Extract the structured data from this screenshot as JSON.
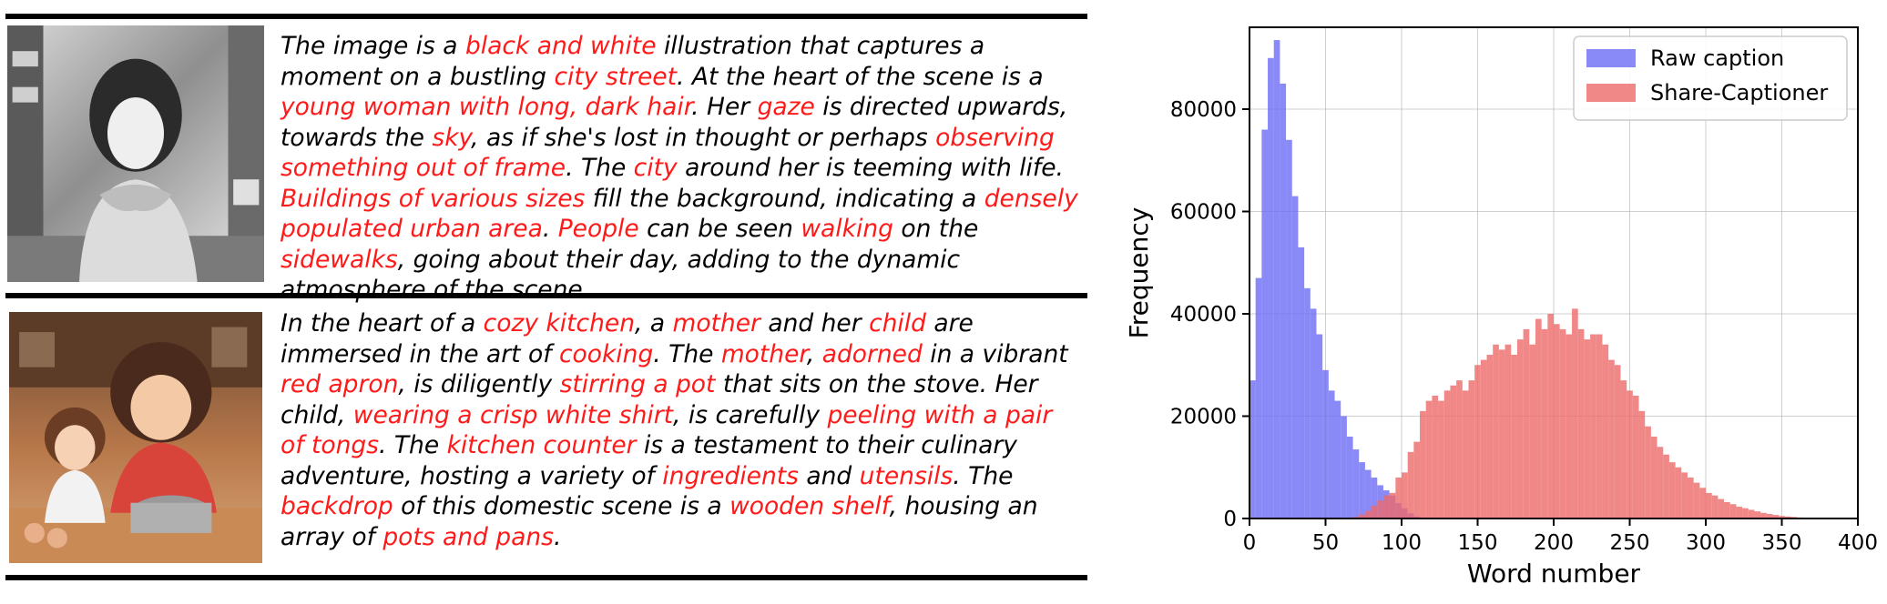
{
  "captions": [
    {
      "segments": [
        {
          "t": "The image is a ",
          "h": false
        },
        {
          "t": "black and white",
          "h": true
        },
        {
          "t": " illustration that captures a moment on a bustling ",
          "h": false
        },
        {
          "t": "city street",
          "h": true
        },
        {
          "t": ". At the heart of the scene is a ",
          "h": false
        },
        {
          "t": "young woman with long, dark hair",
          "h": true
        },
        {
          "t": ". Her ",
          "h": false
        },
        {
          "t": "gaze",
          "h": true
        },
        {
          "t": " is directed upwards, towards the ",
          "h": false
        },
        {
          "t": "sky",
          "h": true
        },
        {
          "t": ", as if she's lost in thought or perhaps ",
          "h": false
        },
        {
          "t": "observing something out of frame",
          "h": true
        },
        {
          "t": ". The ",
          "h": false
        },
        {
          "t": "city",
          "h": true
        },
        {
          "t": " around her is teeming with life. ",
          "h": false
        },
        {
          "t": "Buildings of various sizes",
          "h": true
        },
        {
          "t": " fill the background, indicating a ",
          "h": false
        },
        {
          "t": "densely populated urban area",
          "h": true
        },
        {
          "t": ". ",
          "h": false
        },
        {
          "t": "People",
          "h": true
        },
        {
          "t": " can be seen ",
          "h": false
        },
        {
          "t": "walking",
          "h": true
        },
        {
          "t": " on the ",
          "h": false
        },
        {
          "t": "sidewalks",
          "h": true
        },
        {
          "t": ", going about their day, adding to the dynamic atmosphere of the scene.",
          "h": false
        }
      ]
    },
    {
      "segments": [
        {
          "t": "In the heart of a ",
          "h": false
        },
        {
          "t": "cozy kitchen",
          "h": true
        },
        {
          "t": ", a ",
          "h": false
        },
        {
          "t": "mother",
          "h": true
        },
        {
          "t": " and her ",
          "h": false
        },
        {
          "t": "child",
          "h": true
        },
        {
          "t": " are immersed in the art of ",
          "h": false
        },
        {
          "t": "cooking",
          "h": true
        },
        {
          "t": ". The ",
          "h": false
        },
        {
          "t": "mother",
          "h": true
        },
        {
          "t": ", ",
          "h": false
        },
        {
          "t": "adorned",
          "h": true
        },
        {
          "t": " in a vibrant ",
          "h": false
        },
        {
          "t": "red apron",
          "h": true
        },
        {
          "t": ", is diligently ",
          "h": false
        },
        {
          "t": "stirring a pot",
          "h": true
        },
        {
          "t": " that sits on the stove. Her child, ",
          "h": false
        },
        {
          "t": "wearing a crisp white shirt",
          "h": true
        },
        {
          "t": ", is carefully ",
          "h": false
        },
        {
          "t": "peeling with a pair of tongs",
          "h": true
        },
        {
          "t": ". The ",
          "h": false
        },
        {
          "t": "kitchen counter",
          "h": true
        },
        {
          "t": " is a testament to their culinary adventure, hosting a variety of ",
          "h": false
        },
        {
          "t": "ingredients",
          "h": true
        },
        {
          "t": " and ",
          "h": false
        },
        {
          "t": "utensils",
          "h": true
        },
        {
          "t": ". The ",
          "h": false
        },
        {
          "t": "backdrop",
          "h": true
        },
        {
          "t": " of this domestic scene is a ",
          "h": false
        },
        {
          "t": "wooden shelf",
          "h": true
        },
        {
          "t": ", housing an array of ",
          "h": false
        },
        {
          "t": "pots and pans",
          "h": true
        },
        {
          "t": ".",
          "h": false
        }
      ]
    }
  ],
  "colors": {
    "highlight": "#ff1a1a",
    "raw": "#6b6bf5",
    "share": "#ee6a6a"
  },
  "chart_data": {
    "type": "bar",
    "xlabel": "Word number",
    "ylabel": "Frequency",
    "xlim": [
      0,
      400
    ],
    "ylim": [
      0,
      96000
    ],
    "xticks": [
      0,
      50,
      100,
      150,
      200,
      250,
      300,
      350,
      400
    ],
    "yticks": [
      0,
      20000,
      40000,
      60000,
      80000
    ],
    "grid": true,
    "legend": "top-right",
    "bin_width": 4,
    "series": [
      {
        "name": "Raw caption",
        "color": "#6b6bf5",
        "bin_starts": [
          0,
          4,
          8,
          12,
          16,
          20,
          24,
          28,
          32,
          36,
          40,
          44,
          48,
          52,
          56,
          60,
          64,
          68,
          72,
          76,
          80,
          84,
          88,
          92,
          96,
          100,
          104,
          108
        ],
        "values": [
          27000,
          47000,
          76000,
          90000,
          93500,
          85000,
          74000,
          63000,
          53000,
          45000,
          41000,
          36000,
          29000,
          25000,
          23000,
          20000,
          16000,
          13500,
          11000,
          9500,
          8000,
          6500,
          5500,
          4500,
          3000,
          2000,
          1000,
          400
        ]
      },
      {
        "name": "Share-Captioner",
        "color": "#ee6a6a",
        "bin_starts": [
          68,
          72,
          76,
          80,
          84,
          88,
          92,
          96,
          100,
          104,
          108,
          112,
          116,
          120,
          124,
          128,
          132,
          136,
          140,
          144,
          148,
          152,
          156,
          160,
          164,
          168,
          172,
          176,
          180,
          184,
          188,
          192,
          196,
          200,
          204,
          208,
          212,
          216,
          220,
          224,
          228,
          232,
          236,
          240,
          244,
          248,
          252,
          256,
          260,
          264,
          268,
          272,
          276,
          280,
          284,
          288,
          292,
          296,
          300,
          304,
          308,
          312,
          316,
          320,
          324,
          328,
          332,
          336,
          340,
          344,
          348,
          352,
          356,
          360,
          364,
          368,
          372
        ],
        "values": [
          300,
          800,
          1500,
          2500,
          3500,
          4500,
          5000,
          8000,
          9000,
          13000,
          15000,
          21000,
          23000,
          24000,
          23000,
          25000,
          26000,
          27000,
          25000,
          27000,
          30000,
          31000,
          32000,
          34000,
          33000,
          34000,
          32000,
          35000,
          37000,
          34000,
          39000,
          37000,
          40000,
          38000,
          37000,
          36000,
          41000,
          37000,
          35000,
          36000,
          36000,
          34000,
          31000,
          30000,
          27000,
          25000,
          24000,
          21000,
          18000,
          16000,
          14000,
          12500,
          11000,
          10000,
          9000,
          8000,
          7000,
          6000,
          5000,
          4500,
          3800,
          3200,
          2800,
          2300,
          2000,
          1700,
          1400,
          1100,
          900,
          700,
          500,
          400,
          300,
          200,
          150,
          100,
          60
        ]
      }
    ]
  }
}
